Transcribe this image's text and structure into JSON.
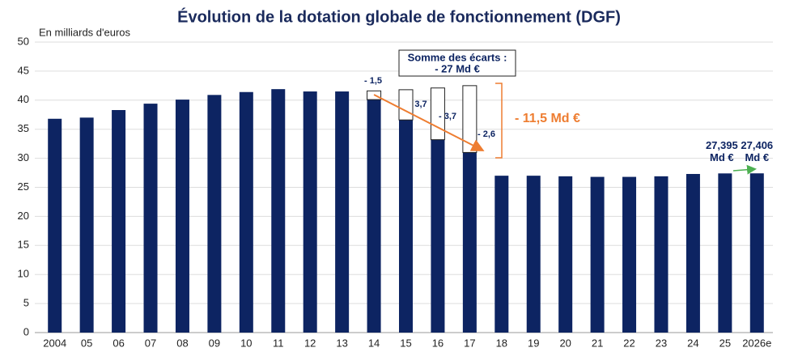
{
  "chart_data": {
    "type": "bar",
    "title": "Évolution de la dotation globale de fonctionnement (DGF)",
    "y_axis_label": "En milliards d'euros",
    "categories": [
      "2004",
      "05",
      "06",
      "07",
      "08",
      "09",
      "10",
      "11",
      "12",
      "13",
      "14",
      "15",
      "16",
      "17",
      "18",
      "19",
      "20",
      "21",
      "22",
      "23",
      "24",
      "25",
      "2026e"
    ],
    "series": [
      {
        "name": "DGF",
        "color": "#0d2462",
        "values": [
          36.8,
          37.0,
          38.3,
          39.4,
          40.1,
          40.9,
          41.4,
          41.9,
          41.5,
          41.5,
          40.1,
          36.6,
          33.2,
          31.0,
          27.0,
          27.0,
          26.9,
          26.8,
          26.8,
          26.9,
          27.3,
          27.395,
          27.406
        ],
        "value_labels": [
          null,
          null,
          null,
          null,
          null,
          null,
          null,
          null,
          null,
          null,
          null,
          null,
          null,
          null,
          null,
          null,
          null,
          null,
          null,
          null,
          null,
          "27,395 Md €",
          "27,406 Md €"
        ]
      },
      {
        "name": "Écart",
        "color": "#ffffff",
        "values": [
          null,
          null,
          null,
          null,
          null,
          null,
          null,
          null,
          null,
          null,
          1.5,
          5.2,
          8.9,
          11.5,
          null,
          null,
          null,
          null,
          null,
          null,
          null,
          null,
          null
        ]
      }
    ],
    "annotations": {
      "box": "Somme des écarts :",
      "box_total": "- 27 Md €",
      "total_gap": "- 11,5 Md €",
      "gaps": [
        "- 1,5",
        "3,7",
        "- 3,7",
        "- 2,6"
      ]
    },
    "ylim": [
      0,
      50
    ],
    "yticks": [
      0,
      5,
      10,
      15,
      20,
      25,
      30,
      35,
      40,
      45,
      50
    ],
    "grid": true,
    "stacked": true
  }
}
